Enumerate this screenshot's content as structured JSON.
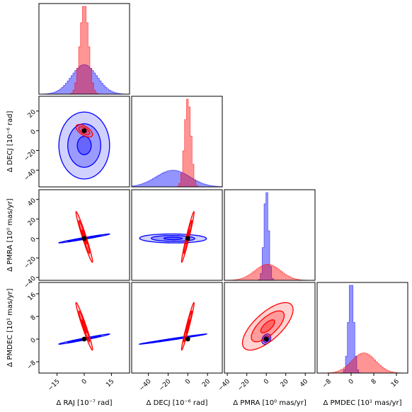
{
  "chart_data": {
    "type": "corner",
    "colors": {
      "red": "#ff0000",
      "blue": "#0000ff",
      "point": "#000000"
    },
    "parameters": [
      {
        "label": "Δ RAJ [10⁻⁷ rad]",
        "range": [
          -25,
          25
        ],
        "ticks": [
          -15,
          0,
          15
        ],
        "tick_labels": [
          "−15",
          "0",
          "15"
        ]
      },
      {
        "label": "Δ DECJ [10⁻⁶ rad]",
        "range": [
          -57,
          35
        ],
        "ticks": [
          -40,
          -20,
          0,
          20
        ],
        "tick_labels": [
          "−40",
          "−20",
          "0",
          "20"
        ]
      },
      {
        "label": "Δ PMRA [10⁰ mas/yr]",
        "range": [
          -43,
          50
        ],
        "ticks": [
          -40,
          -20,
          0,
          20,
          40
        ],
        "tick_labels": [
          "−40",
          "−20",
          "0",
          "20",
          "40"
        ]
      },
      {
        "label": "Δ PMDEC [10¹ mas/yr]",
        "range": [
          -12,
          20
        ],
        "ticks": [
          -8,
          0,
          8,
          16
        ],
        "tick_labels": [
          "−8",
          "0",
          "8",
          "16"
        ]
      }
    ],
    "series": [
      {
        "name": "",
        "color": "#ff0000",
        "mean": [
          0,
          0,
          1.5,
          4.5
        ],
        "sd": [
          2.3,
          3.2,
          13,
          4.2
        ]
      },
      {
        "name": "",
        "color": "#0000ff",
        "mean": [
          0,
          -15,
          0,
          0
        ],
        "sd": [
          7,
          17,
          2.3,
          0.9
        ]
      }
    ],
    "correlations": [
      {
        "pair": [
          1,
          0
        ],
        "red": -0.6,
        "blue": 0.0
      },
      {
        "pair": [
          2,
          0
        ],
        "red": -0.97,
        "blue": 0.98
      },
      {
        "pair": [
          2,
          1
        ],
        "red": 0.97,
        "blue": -0.05
      },
      {
        "pair": [
          3,
          0
        ],
        "red": -0.97,
        "blue": 0.98
      },
      {
        "pair": [
          3,
          1
        ],
        "red": 0.97,
        "blue": 0.99
      },
      {
        "pair": [
          3,
          2
        ],
        "red": 0.7,
        "blue": 0.3
      }
    ],
    "truth_point": [
      0,
      0,
      0,
      0
    ]
  }
}
